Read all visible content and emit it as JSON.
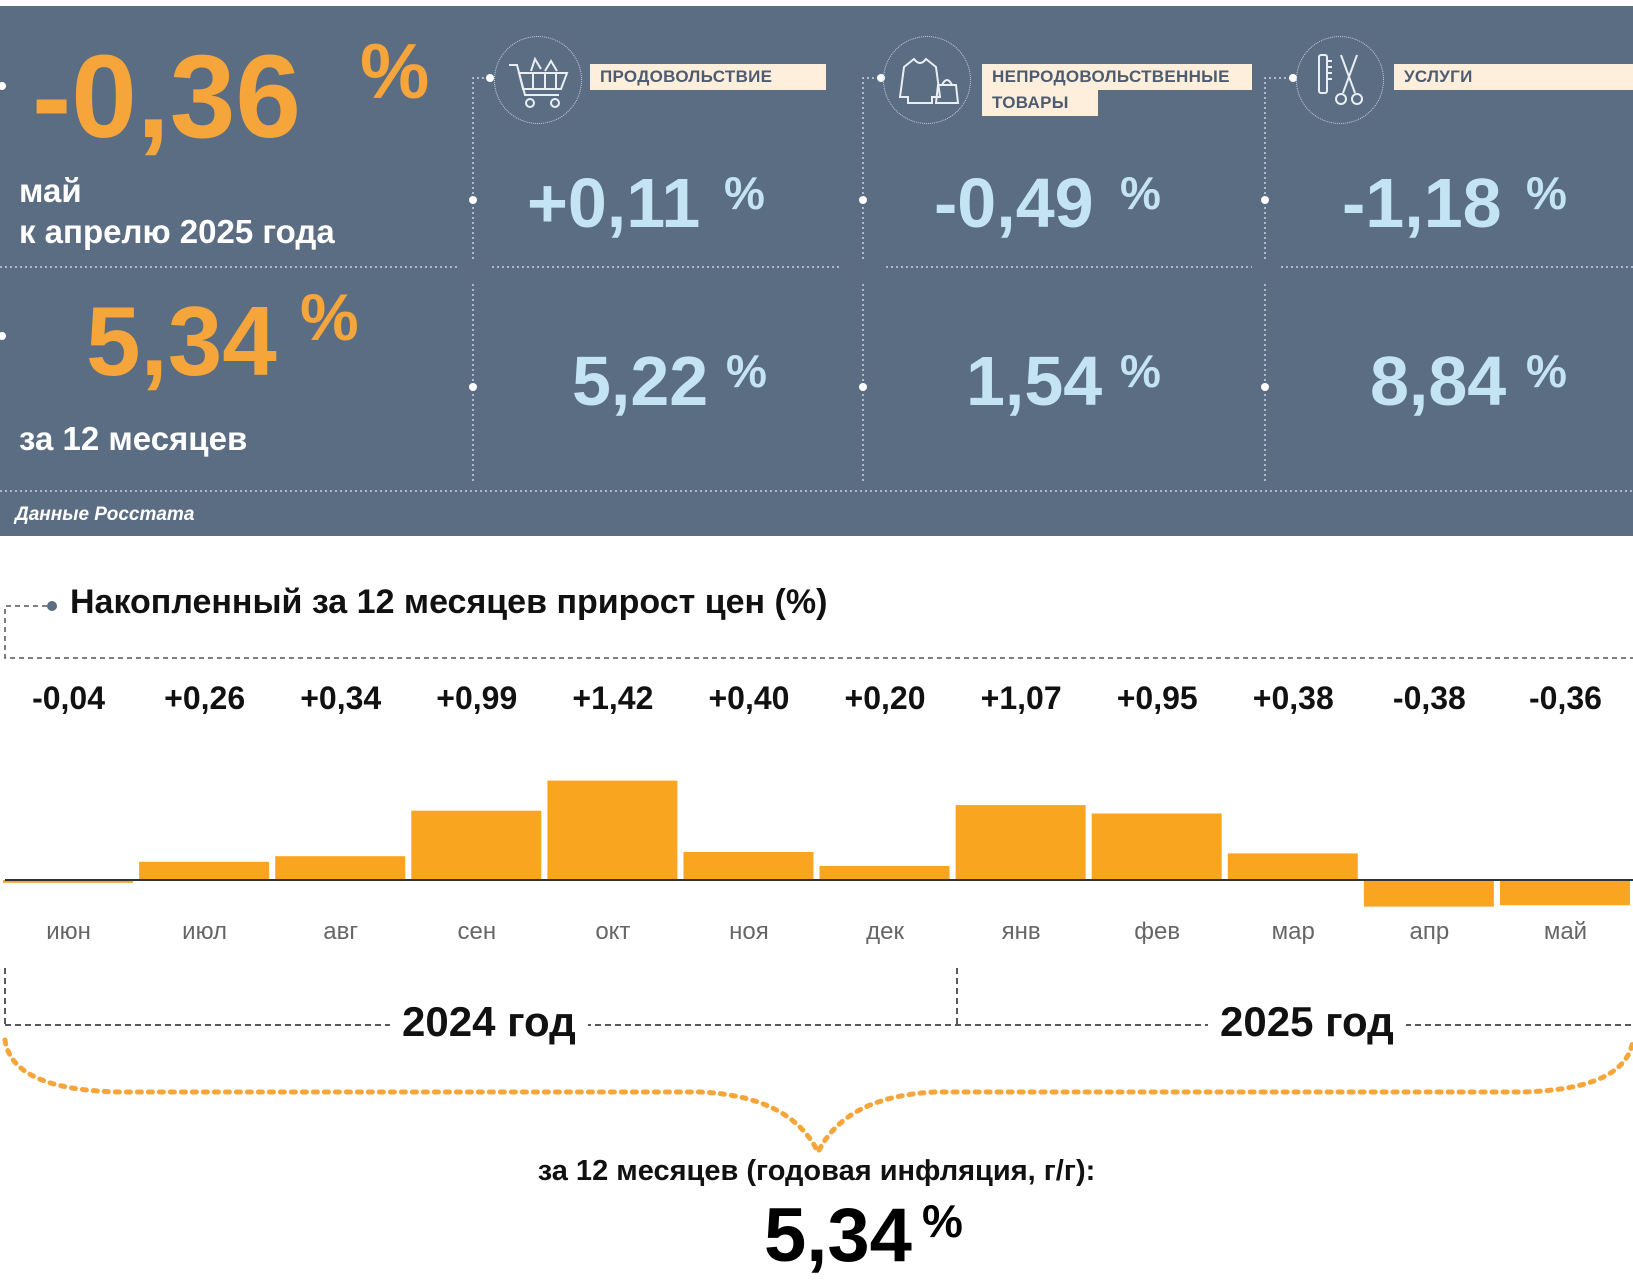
{
  "summary": {
    "monthly": {
      "value": "-0,36",
      "unit": "%",
      "label_line1": "май",
      "label_line2": "к апрелю 2025 года"
    },
    "annual": {
      "value": "5,34",
      "unit": "%",
      "label": "за 12 месяцев"
    },
    "source": "Данные Росстата"
  },
  "categories": [
    {
      "label": "ПРОДОВОЛЬСТВИЕ",
      "icon": "shopping-cart-icon",
      "monthly": "+0,11",
      "annual": "5,22",
      "unit": "%"
    },
    {
      "label_line1": "НЕПРОДОВОЛЬСТВЕННЫЕ",
      "label_line2": "ТОВАРЫ",
      "icon": "clothing-bag-icon",
      "monthly": "-0,49",
      "annual": "1,54",
      "unit": "%"
    },
    {
      "label": "УСЛУГИ",
      "icon": "scissors-comb-icon",
      "monthly": "-1,18",
      "annual": "8,84",
      "unit": "%"
    }
  ],
  "colors": {
    "panel": "#5a6d83",
    "accent_orange": "#f6a53a",
    "value_blue": "#c5e4f3",
    "bar": "#f9a51f",
    "label_bg": "#fdefdc"
  },
  "chart_data": {
    "type": "bar",
    "title": "Накопленный за 12 месяцев прирост цен (%)",
    "categories": [
      "июн",
      "июл",
      "авг",
      "сен",
      "окт",
      "ноя",
      "дек",
      "янв",
      "фев",
      "мар",
      "апр",
      "май"
    ],
    "values": [
      -0.04,
      0.26,
      0.34,
      0.99,
      1.42,
      0.4,
      0.2,
      1.07,
      0.95,
      0.38,
      -0.38,
      -0.36
    ],
    "value_labels": [
      "-0,04",
      "+0,26",
      "+0,34",
      "+0,99",
      "+1,42",
      "+0,40",
      "+0,20",
      "+1,07",
      "+0,95",
      "+0,38",
      "-0,38",
      "-0,36"
    ],
    "years": [
      {
        "label": "2024 год"
      },
      {
        "label": "2025 год"
      }
    ],
    "grid": false
  },
  "footer": {
    "label": "за 12 месяцев (годовая инфляция, г/г):",
    "value": "5,34",
    "unit": "%"
  }
}
